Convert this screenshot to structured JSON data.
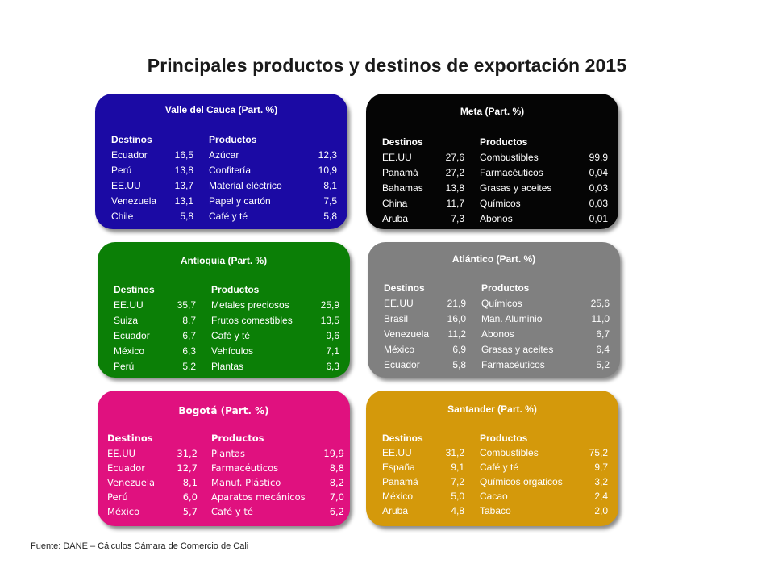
{
  "title": "Principales productos y destinos de exportación 2015",
  "source": "Fuente: DANE – Cálculos Cámara de Comercio de Cali",
  "colors": {
    "valle": "#1b0aa4",
    "meta": "#050505",
    "antioquia": "#0b7f06",
    "atlantico": "#808080",
    "bogota": "#e0117f",
    "santander": "#d4990b"
  },
  "cards": [
    {
      "title": "Valle del Cauca (Part. %)",
      "dest_header": "Destinos",
      "prod_header": "Productos",
      "rows": [
        {
          "dest": "Ecuador",
          "dval": "16,5",
          "prod": "Azúcar",
          "pval": "12,3"
        },
        {
          "dest": "Perú",
          "dval": "13,8",
          "prod": "Confitería",
          "pval": "10,9"
        },
        {
          "dest": "EE.UU",
          "dval": "13,7",
          "prod": "Material eléctrico",
          "pval": "8,1"
        },
        {
          "dest": "Venezuela",
          "dval": "13,1",
          "prod": "Papel y cartón",
          "pval": "7,5"
        },
        {
          "dest": "Chile",
          "dval": "5,8",
          "prod": "Café y té",
          "pval": "5,8"
        }
      ]
    },
    {
      "title": "Meta (Part. %)",
      "dest_header": "Destinos",
      "prod_header": "Productos",
      "rows": [
        {
          "dest": "EE.UU",
          "dval": "27,6",
          "prod": "Combustibles",
          "pval": "99,9"
        },
        {
          "dest": "Panamá",
          "dval": "27,2",
          "prod": "Farmacéuticos",
          "pval": "0,04"
        },
        {
          "dest": "Bahamas",
          "dval": "13,8",
          "prod": "Grasas y aceites",
          "pval": "0,03"
        },
        {
          "dest": "China",
          "dval": "11,7",
          "prod": "Químicos",
          "pval": "0,03"
        },
        {
          "dest": "Aruba",
          "dval": "7,3",
          "prod": "Abonos",
          "pval": "0,01"
        }
      ]
    },
    {
      "title": "Antioquia (Part. %)",
      "dest_header": "Destinos",
      "prod_header": "Productos",
      "rows": [
        {
          "dest": "EE.UU",
          "dval": "35,7",
          "prod": "Metales preciosos",
          "pval": "25,9"
        },
        {
          "dest": "Suiza",
          "dval": "8,7",
          "prod": "Frutos comestibles",
          "pval": "13,5"
        },
        {
          "dest": "Ecuador",
          "dval": "6,7",
          "prod": "Café y té",
          "pval": "9,6"
        },
        {
          "dest": "México",
          "dval": "6,3",
          "prod": "Vehículos",
          "pval": "7,1"
        },
        {
          "dest": "Perú",
          "dval": "5,2",
          "prod": "Plantas",
          "pval": "6,3"
        }
      ]
    },
    {
      "title": "Atlántico (Part. %)",
      "dest_header": "Destinos",
      "prod_header": "Productos",
      "rows": [
        {
          "dest": "EE.UU",
          "dval": "21,9",
          "prod": "Químicos",
          "pval": "25,6"
        },
        {
          "dest": "Brasil",
          "dval": "16,0",
          "prod": "Man. Aluminio",
          "pval": "11,0"
        },
        {
          "dest": "Venezuela",
          "dval": "11,2",
          "prod": "Abonos",
          "pval": "6,7"
        },
        {
          "dest": "México",
          "dval": "6,9",
          "prod": "Grasas y aceites",
          "pval": "6,4"
        },
        {
          "dest": "Ecuador",
          "dval": "5,8",
          "prod": "Farmacéuticos",
          "pval": "5,2"
        }
      ]
    },
    {
      "title": "Bogotá (Part. %)",
      "dest_header": "Destinos",
      "prod_header": "Productos",
      "rows": [
        {
          "dest": "EE.UU",
          "dval": "31,2",
          "prod": "Plantas",
          "pval": "19,9"
        },
        {
          "dest": "Ecuador",
          "dval": "12,7",
          "prod": "Farmacéuticos",
          "pval": "8,8"
        },
        {
          "dest": "Venezuela",
          "dval": "8,1",
          "prod": "Manuf. Plástico",
          "pval": "8,2"
        },
        {
          "dest": "Perú",
          "dval": "6,0",
          "prod": "Aparatos mecánicos",
          "pval": "7,0"
        },
        {
          "dest": "México",
          "dval": "5,7",
          "prod": "Café y té",
          "pval": "6,2"
        }
      ]
    },
    {
      "title": "Santander (Part. %)",
      "dest_header": "Destinos",
      "prod_header": "Productos",
      "rows": [
        {
          "dest": "EE.UU",
          "dval": "31,2",
          "prod": "Combustibles",
          "pval": "75,2"
        },
        {
          "dest": "España",
          "dval": "9,1",
          "prod": "Café y té",
          "pval": "9,7"
        },
        {
          "dest": "Panamá",
          "dval": "7,2",
          "prod": "Químicos orgaticos",
          "pval": "3,2"
        },
        {
          "dest": "México",
          "dval": "5,0",
          "prod": "Cacao",
          "pval": "2,4"
        },
        {
          "dest": "Aruba",
          "dval": "4,8",
          "prod": "Tabaco",
          "pval": "2,0"
        }
      ]
    }
  ]
}
